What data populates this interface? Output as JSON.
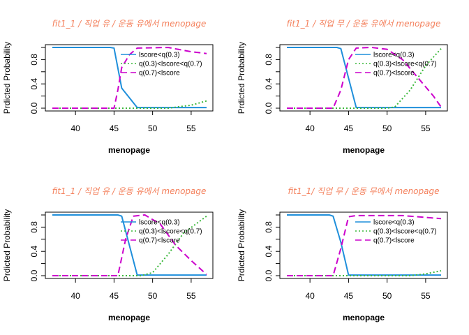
{
  "chart_data": [
    {
      "type": "line",
      "title": "fit1_1 / 직업 유 / 운동 유에서 menopage",
      "xlabel": "menopage",
      "ylabel": "Prdicted  Probability",
      "xlim": [
        37,
        57
      ],
      "ylim": [
        0,
        1
      ],
      "xticks": [
        "40",
        "45",
        "50",
        "55"
      ],
      "yticks": [
        "0.0",
        "0.4",
        "0.8"
      ],
      "legend_position": "top-right",
      "series": [
        {
          "name": "lscore<q(0.3)",
          "color": "#1f8fdb",
          "dash": "solid",
          "points": [
            [
              37,
              1.0
            ],
            [
              44.5,
              1.0
            ],
            [
              45,
              0.99
            ],
            [
              46,
              0.33
            ],
            [
              48,
              0.01
            ],
            [
              57,
              0.01
            ]
          ]
        },
        {
          "name": "q(0.3)<lscore<q(0.7)",
          "color": "#3cb83c",
          "dash": "dotted",
          "points": [
            [
              37,
              0.0
            ],
            [
              52,
              0.0
            ],
            [
              55,
              0.05
            ],
            [
              57,
              0.12
            ]
          ]
        },
        {
          "name": "q(0.7)<lscore",
          "color": "#cc00cc",
          "dash": "dashed",
          "points": [
            [
              37,
              0.0
            ],
            [
              45,
              0.0
            ],
            [
              45.5,
              0.3
            ],
            [
              46,
              0.67
            ],
            [
              47,
              0.88
            ],
            [
              48,
              0.99
            ],
            [
              52,
              1.0
            ],
            [
              55,
              0.93
            ],
            [
              57,
              0.9
            ]
          ]
        }
      ]
    },
    {
      "type": "line",
      "title": "fit1_1 / 직업 무 / 운동 유에서 menopage",
      "xlabel": "menopage",
      "ylabel": "Prdicted  Probability",
      "xlim": [
        37,
        57
      ],
      "ylim": [
        0,
        1
      ],
      "xticks": [
        "40",
        "45",
        "50",
        "55"
      ],
      "yticks": [
        "0.0",
        "0.4",
        "0.8"
      ],
      "legend_position": "top-right",
      "series": [
        {
          "name": "lscore<q(0.3)",
          "color": "#1f8fdb",
          "dash": "solid",
          "points": [
            [
              37,
              1.0
            ],
            [
              43.5,
              1.0
            ],
            [
              44,
              0.98
            ],
            [
              46,
              0.01
            ],
            [
              57,
              0.01
            ]
          ]
        },
        {
          "name": "q(0.3)<lscore<q(0.7)",
          "color": "#3cb83c",
          "dash": "dotted",
          "points": [
            [
              37,
              0.0
            ],
            [
              50,
              0.0
            ],
            [
              51,
              0.02
            ],
            [
              53,
              0.3
            ],
            [
              55,
              0.7
            ],
            [
              57,
              0.98
            ]
          ]
        },
        {
          "name": "q(0.7)<lscore",
          "color": "#cc00cc",
          "dash": "dashed",
          "points": [
            [
              37,
              0.0
            ],
            [
              43,
              0.0
            ],
            [
              44,
              0.3
            ],
            [
              45,
              0.8
            ],
            [
              46,
              0.99
            ],
            [
              48,
              1.0
            ],
            [
              50,
              0.97
            ],
            [
              52,
              0.8
            ],
            [
              54,
              0.5
            ],
            [
              56,
              0.2
            ],
            [
              57,
              0.02
            ]
          ]
        }
      ]
    },
    {
      "type": "line",
      "title": "fit1_1 / 직업 유 / 운동 유에서 menopage",
      "xlabel": "menopage",
      "ylabel": "Prdicted  Probability",
      "xlim": [
        37,
        57
      ],
      "ylim": [
        0,
        1
      ],
      "xticks": [
        "40",
        "45",
        "50",
        "55"
      ],
      "yticks": [
        "0.0",
        "0.4",
        "0.8"
      ],
      "legend_position": "top-right",
      "series": [
        {
          "name": "lscore<q(0.3)",
          "color": "#1f8fdb",
          "dash": "solid",
          "points": [
            [
              37,
              1.0
            ],
            [
              45.5,
              1.0
            ],
            [
              46,
              0.98
            ],
            [
              48,
              0.01
            ],
            [
              57,
              0.01
            ]
          ]
        },
        {
          "name": "q(0.3)<lscore<q(0.7)",
          "color": "#3cb83c",
          "dash": "dotted",
          "points": [
            [
              37,
              0.0
            ],
            [
              48.5,
              0.0
            ],
            [
              50,
              0.05
            ],
            [
              52,
              0.35
            ],
            [
              54,
              0.7
            ],
            [
              57,
              0.98
            ]
          ]
        },
        {
          "name": "q(0.7)<lscore",
          "color": "#cc00cc",
          "dash": "dashed",
          "points": [
            [
              37,
              0.0
            ],
            [
              45.5,
              0.0
            ],
            [
              46.5,
              0.6
            ],
            [
              47.5,
              0.98
            ],
            [
              49,
              1.0
            ],
            [
              51,
              0.85
            ],
            [
              53,
              0.5
            ],
            [
              55,
              0.25
            ],
            [
              57,
              0.02
            ]
          ]
        }
      ]
    },
    {
      "type": "line",
      "title": "fit1_1/ 직업 무 / 운동 무에서 menopage",
      "xlabel": "menopage",
      "ylabel": "Prdicted  Probability",
      "xlim": [
        37,
        57
      ],
      "ylim": [
        0,
        1
      ],
      "xticks": [
        "40",
        "45",
        "50",
        "55"
      ],
      "yticks": [
        "0.0",
        "0.4",
        "0.8"
      ],
      "legend_position": "top-right",
      "series": [
        {
          "name": "lscore<q(0.3)",
          "color": "#1f8fdb",
          "dash": "solid",
          "points": [
            [
              37,
              1.0
            ],
            [
              42.5,
              1.0
            ],
            [
              43,
              0.98
            ],
            [
              44,
              0.55
            ],
            [
              45,
              0.01
            ],
            [
              57,
              0.01
            ]
          ]
        },
        {
          "name": "q(0.3)<lscore<q(0.7)",
          "color": "#3cb83c",
          "dash": "dotted",
          "points": [
            [
              37,
              0.0
            ],
            [
              53,
              0.0
            ],
            [
              55,
              0.03
            ],
            [
              57,
              0.08
            ]
          ]
        },
        {
          "name": "q(0.7)<lscore",
          "color": "#cc00cc",
          "dash": "dashed",
          "points": [
            [
              37,
              0.0
            ],
            [
              43,
              0.0
            ],
            [
              44,
              0.45
            ],
            [
              45,
              0.97
            ],
            [
              46,
              0.99
            ],
            [
              52,
              0.99
            ],
            [
              55,
              0.96
            ],
            [
              57,
              0.94
            ]
          ]
        }
      ]
    }
  ]
}
